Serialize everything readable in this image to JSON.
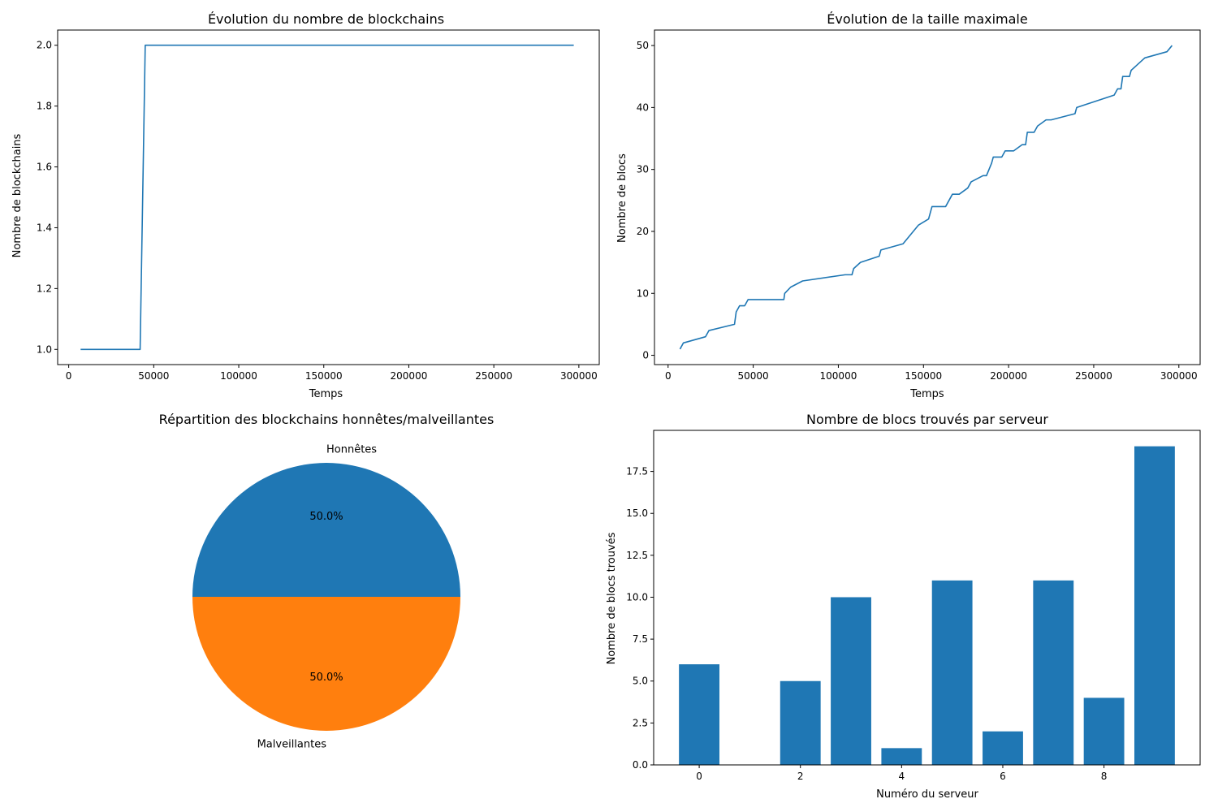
{
  "colors": {
    "blue": "#1f77b4",
    "orange": "#ff7f0e",
    "axis": "#000000"
  },
  "chart_data": [
    {
      "type": "line",
      "title": "Évolution du nombre de blockchains",
      "xlabel": "Temps",
      "ylabel": "Nombre de blockchains",
      "xlim": [
        -6500,
        312000
      ],
      "ylim": [
        0.95,
        2.05
      ],
      "xticks": [
        0,
        50000,
        100000,
        150000,
        200000,
        250000,
        300000
      ],
      "xtick_labels": [
        "0",
        "50000",
        "100000",
        "150000",
        "200000",
        "250000",
        "300000"
      ],
      "yticks": [
        1.0,
        1.2,
        1.4,
        1.6,
        1.8,
        2.0
      ],
      "ytick_labels": [
        "1.0",
        "1.2",
        "1.4",
        "1.6",
        "1.8",
        "2.0"
      ],
      "grid": false,
      "series": [
        {
          "color": "#1f77b4",
          "x": [
            7000,
            42000,
            45000,
            297000
          ],
          "y": [
            1,
            1,
            2,
            2
          ]
        }
      ]
    },
    {
      "type": "line",
      "title": "Évolution de la taille maximale",
      "xlabel": "Temps",
      "ylabel": "Nombre de blocs",
      "xlim": [
        -8000,
        312500
      ],
      "ylim": [
        -1.5,
        52.5
      ],
      "xticks": [
        0,
        50000,
        100000,
        150000,
        200000,
        250000,
        300000
      ],
      "xtick_labels": [
        "0",
        "50000",
        "100000",
        "150000",
        "200000",
        "250000",
        "300000"
      ],
      "yticks": [
        0,
        10,
        20,
        30,
        40,
        50
      ],
      "ytick_labels": [
        "0",
        "10",
        "20",
        "30",
        "40",
        "50"
      ],
      "grid": false,
      "series": [
        {
          "color": "#1f77b4",
          "x": [
            7000,
            9000,
            22000,
            24000,
            39000,
            40000,
            42000,
            45000,
            47000,
            68000,
            68500,
            72000,
            79000,
            104000,
            108000,
            109000,
            113000,
            124000,
            125000,
            138000,
            141000,
            144000,
            147000,
            153000,
            154000,
            155000,
            163000,
            165000,
            167000,
            171000,
            176000,
            178000,
            185000,
            187000,
            190000,
            191000,
            196000,
            198000,
            203000,
            208000,
            210000,
            211000,
            215000,
            217000,
            222000,
            225000,
            239000,
            240000,
            251000,
            262000,
            264000,
            266000,
            267000,
            271000,
            272000,
            276000,
            280000,
            293000,
            296000
          ],
          "y": [
            1,
            2,
            3,
            4,
            5,
            7,
            8,
            8,
            9,
            9,
            10,
            11,
            12,
            13,
            13,
            14,
            15,
            16,
            17,
            18,
            19,
            20,
            21,
            22,
            23,
            24,
            24,
            25,
            26,
            26,
            27,
            28,
            29,
            29,
            31,
            32,
            32,
            33,
            33,
            34,
            34,
            36,
            36,
            37,
            38,
            38,
            39,
            40,
            41,
            42,
            43,
            43,
            45,
            45,
            46,
            47,
            48,
            49,
            50
          ]
        }
      ]
    },
    {
      "type": "pie",
      "title": "Répartition des blockchains honnêtes/malveillantes",
      "labels": [
        "Honnêtes",
        "Malveillantes"
      ],
      "values": [
        50,
        50
      ],
      "autopct": [
        "50.0%",
        "50.0%"
      ],
      "colors": [
        "#1f77b4",
        "#ff7f0e"
      ],
      "startangle": 0
    },
    {
      "type": "bar",
      "title": "Nombre de blocs trouvés par serveur",
      "xlabel": "Numéro du serveur",
      "ylabel": "Nombre de blocs trouvés",
      "categories": [
        0,
        1,
        2,
        3,
        4,
        5,
        6,
        7,
        8,
        9
      ],
      "values": [
        6,
        0,
        5,
        10,
        1,
        11,
        2,
        11,
        4,
        19
      ],
      "color": "#1f77b4",
      "xlim": [
        -0.9,
        9.9
      ],
      "ylim": [
        0,
        19.95
      ],
      "xticks": [
        0,
        2,
        4,
        6,
        8
      ],
      "xtick_labels": [
        "0",
        "2",
        "4",
        "6",
        "8"
      ],
      "yticks": [
        0,
        2.5,
        5.0,
        7.5,
        10.0,
        12.5,
        15.0,
        17.5
      ],
      "ytick_labels": [
        "0.0",
        "2.5",
        "5.0",
        "7.5",
        "10.0",
        "12.5",
        "15.0",
        "17.5"
      ],
      "grid": false
    }
  ]
}
